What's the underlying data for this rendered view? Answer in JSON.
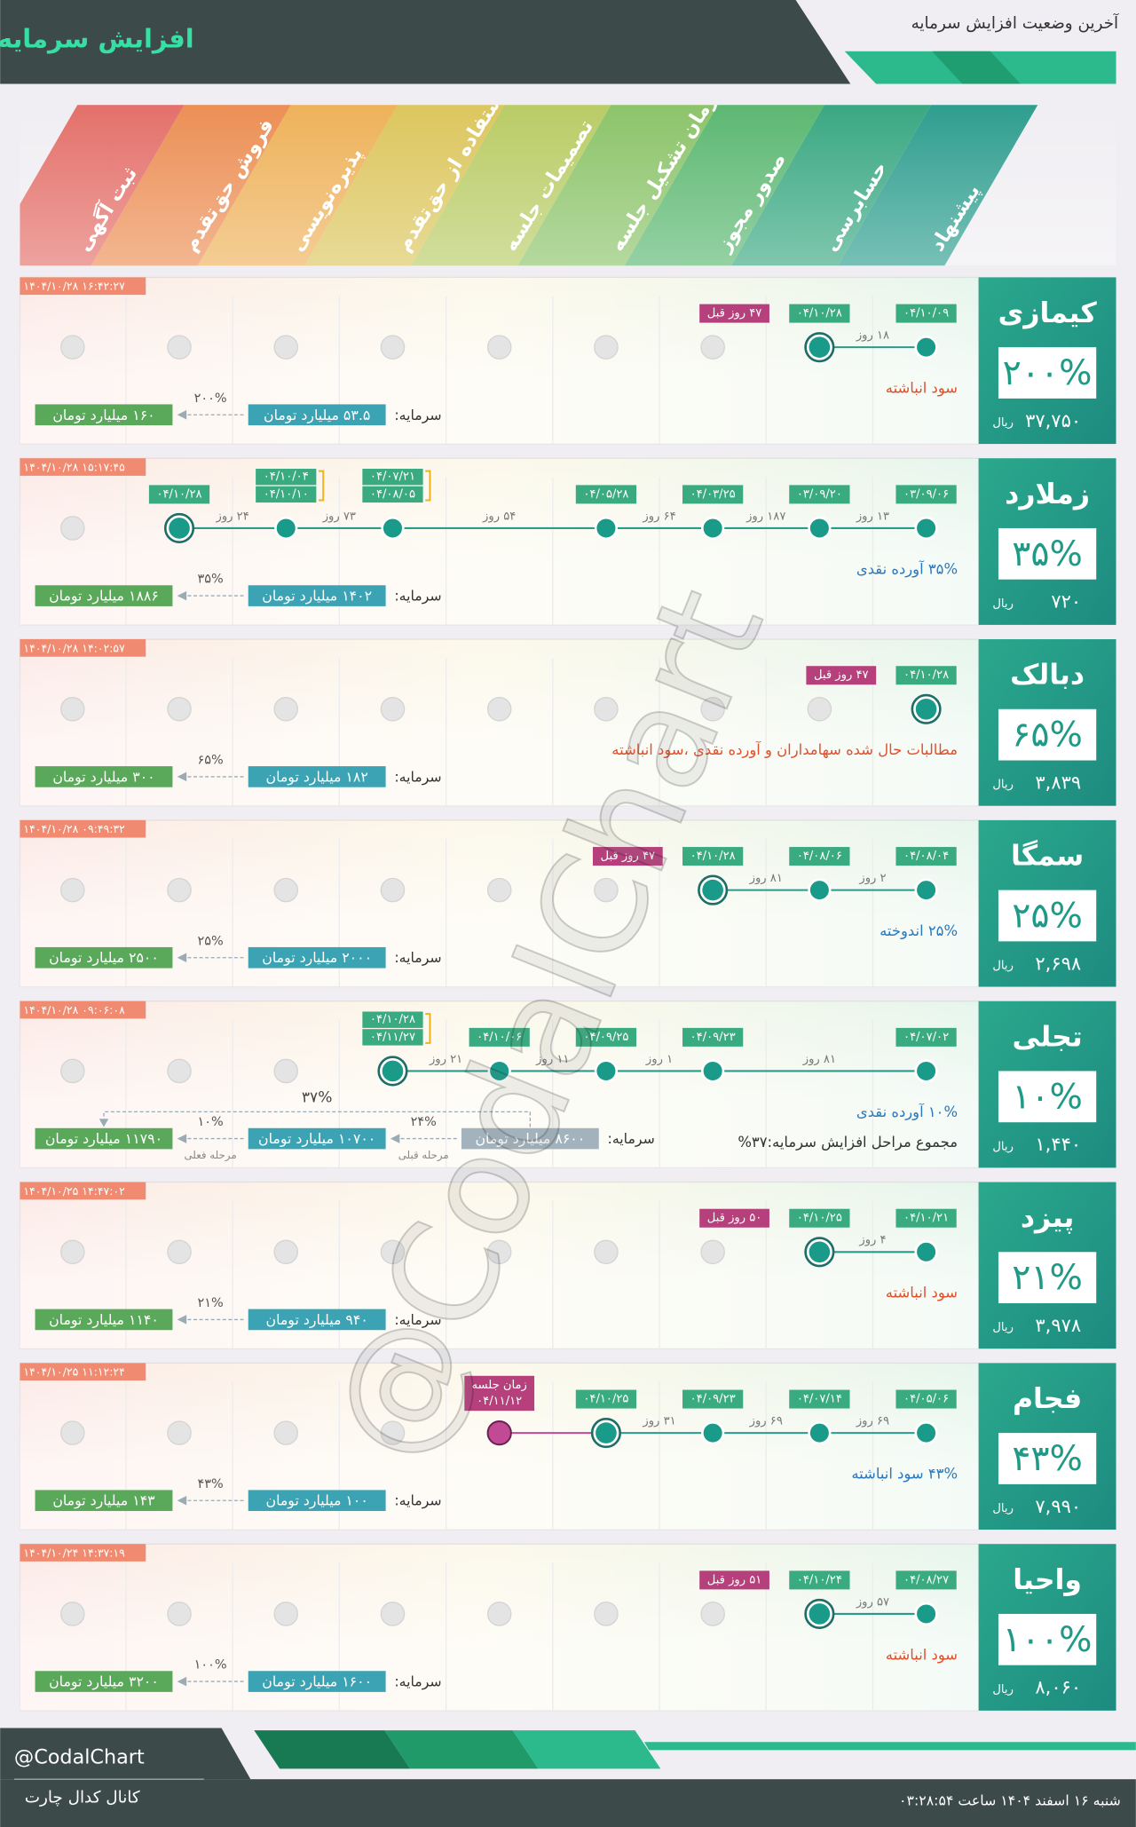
{
  "header": {
    "title": "افزایش سرمایه",
    "subtitle": "آخرین وضعیت افزایش سرمایه"
  },
  "stages": [
    "پیشنهاد",
    "حسابرسی",
    "صدور مجوز",
    "زمان تشکیل جلسه",
    "تصمیمات جلسه",
    "استفاده از حق‌تقدم",
    "پذیره‌نویسی",
    "فروش حق‌تقدم",
    "ثبت آگهی"
  ],
  "stage_colors": [
    "#2f9e8f",
    "#3aa882",
    "#5cb872",
    "#8cc46a",
    "#b9cc66",
    "#dcc65e",
    "#eeb25a",
    "#ec8f55",
    "#e4706a"
  ],
  "companies": [
    {
      "name": "کیمازی",
      "percent": "۲۰۰%",
      "price": "۳۷,۷۵۰",
      "unit": "ریال",
      "updated": "۱۴۰۴/۱۰/۲۸ ۱۶:۴۲:۲۷",
      "timeline": [
        {
          "dates": [
            "۰۴/۱۰/۰۹"
          ],
          "state": "done"
        },
        {
          "dates": [
            "۰۴/۱۰/۲۸"
          ],
          "state": "current",
          "ago": "۴۷ روز قبل"
        },
        null,
        null,
        null,
        null,
        null,
        null,
        null
      ],
      "gaps": [
        "۱۸ روز"
      ],
      "notes": [
        {
          "text": "سود انباشته",
          "color": "#e0502a"
        }
      ],
      "capital_label": "سرمایه:",
      "capital": [
        {
          "text": "۵۳.۵ میلیارد تومان",
          "color": "#3ba3b3"
        },
        {
          "text": "۱۶۰ میلیارد تومان",
          "color": "#5aa85a"
        }
      ],
      "steps": [
        {
          "pct": "۲۰۰%"
        }
      ]
    },
    {
      "name": "زملارد",
      "percent": "۳۵%",
      "price": "۷۲۰",
      "unit": "ریال",
      "updated": "۱۴۰۴/۱۰/۲۸ ۱۵:۱۷:۴۵",
      "timeline": [
        {
          "dates": [
            "۰۳/۰۹/۰۶"
          ],
          "state": "done"
        },
        {
          "dates": [
            "۰۳/۰۹/۲۰"
          ],
          "state": "done"
        },
        {
          "dates": [
            "۰۴/۰۳/۲۵"
          ],
          "state": "done"
        },
        {
          "dates": [
            "۰۴/۰۵/۲۸"
          ],
          "state": "done"
        },
        null,
        {
          "dates": [
            "۰۴/۰۷/۲۱",
            "۰۴/۰۸/۰۵"
          ],
          "state": "done"
        },
        {
          "dates": [
            "۰۴/۱۰/۰۴",
            "۰۴/۱۰/۱۰"
          ],
          "state": "done"
        },
        {
          "dates": [
            "۰۴/۱۰/۲۸"
          ],
          "state": "current"
        },
        null
      ],
      "gaps": [
        "۱۳ روز",
        "۱۸۷ روز",
        "۶۴ روز",
        "۵۴ روز",
        "۷۳ روز",
        "۲۴ روز"
      ],
      "notes": [
        {
          "text": "۳۵% آورده نقدی",
          "color": "#2a78bd"
        }
      ],
      "capital_label": "سرمایه:",
      "capital": [
        {
          "text": "۱۴۰۲ میلیارد تومان",
          "color": "#3ba3b3"
        },
        {
          "text": "۱۸۸۶ میلیارد تومان",
          "color": "#5aa85a"
        }
      ],
      "steps": [
        {
          "pct": "۳۵%"
        }
      ]
    },
    {
      "name": "دبالک",
      "percent": "۶۵%",
      "price": "۳,۸۳۹",
      "unit": "ریال",
      "updated": "۱۴۰۴/۱۰/۲۸ ۱۴:۰۲:۵۷",
      "timeline": [
        {
          "dates": [
            "۰۴/۱۰/۲۸"
          ],
          "state": "current",
          "ago": "۴۷ روز قبل"
        },
        null,
        null,
        null,
        null,
        null,
        null,
        null,
        null
      ],
      "gaps": [],
      "notes": [
        {
          "text": "مطالبات حال شده سهامداران و آورده نقدی ،سود انباشته",
          "color": "#e0502a"
        }
      ],
      "capital_label": "سرمایه:",
      "capital": [
        {
          "text": "۱۸۲ میلیارد تومان",
          "color": "#3ba3b3"
        },
        {
          "text": "۳۰۰ میلیارد تومان",
          "color": "#5aa85a"
        }
      ],
      "steps": [
        {
          "pct": "۶۵%"
        }
      ]
    },
    {
      "name": "سمگا",
      "percent": "۲۵%",
      "price": "۲,۶۹۸",
      "unit": "ریال",
      "updated": "۱۴۰۴/۱۰/۲۸ ۰۹:۴۹:۳۲",
      "timeline": [
        {
          "dates": [
            "۰۴/۰۸/۰۴"
          ],
          "state": "done"
        },
        {
          "dates": [
            "۰۴/۰۸/۰۶"
          ],
          "state": "done"
        },
        {
          "dates": [
            "۰۴/۱۰/۲۸"
          ],
          "state": "current",
          "ago": "۴۷ روز قبل"
        },
        null,
        null,
        null,
        null,
        null,
        null
      ],
      "gaps": [
        "۲ روز",
        "۸۱ روز"
      ],
      "notes": [
        {
          "text": "۲۵% اندوخته",
          "color": "#2a78bd"
        }
      ],
      "capital_label": "سرمایه:",
      "capital": [
        {
          "text": "۲۰۰۰ میلیارد تومان",
          "color": "#3ba3b3"
        },
        {
          "text": "۲۵۰۰ میلیارد تومان",
          "color": "#5aa85a"
        }
      ],
      "steps": [
        {
          "pct": "۲۵%"
        }
      ]
    },
    {
      "name": "تجلی",
      "percent": "۱۰%",
      "price": "۱,۴۴۰",
      "unit": "ریال",
      "updated": "۱۴۰۴/۱۰/۲۸ ۰۹:۰۶:۰۸",
      "timeline": [
        {
          "dates": [
            "۰۴/۰۷/۰۲"
          ],
          "state": "done"
        },
        null,
        {
          "dates": [
            "۰۴/۰۹/۲۳"
          ],
          "state": "done"
        },
        {
          "dates": [
            "۰۴/۰۹/۲۵"
          ],
          "state": "done"
        },
        {
          "dates": [
            "۰۴/۱۰/۰۶"
          ],
          "state": "done"
        },
        {
          "dates": [
            "۰۴/۱۰/۲۸",
            "۰۴/۱۱/۲۷"
          ],
          "state": "current"
        },
        null,
        null,
        null
      ],
      "gaps": [
        "۸۱ روز",
        "۱ روز",
        "۱۱ روز",
        "۲۱ روز"
      ],
      "notes": [
        {
          "text": "۱۰% آورده نقدی",
          "color": "#2a78bd"
        },
        {
          "text": "مجموع مراحل افزایش سرمایه:۳۷%",
          "color": "#333333"
        }
      ],
      "capital_label": "سرمایه:",
      "capital": [
        {
          "text": "۸۶۰۰ میلیارد تومان",
          "color": "#a3b3be"
        },
        {
          "text": "۱۰۷۰۰ میلیارد تومان",
          "color": "#3ba3b3"
        },
        {
          "text": "۱۱۷۹۰ میلیارد تومان",
          "color": "#5aa85a"
        }
      ],
      "steps": [
        {
          "pct": "۲۴%",
          "label": "مرحله قبلی"
        },
        {
          "pct": "۱۰%",
          "label": "مرحله فعلی"
        }
      ],
      "total": "۳۷%"
    },
    {
      "name": "پیزد",
      "percent": "۲۱%",
      "price": "۳,۹۷۸",
      "unit": "ریال",
      "updated": "۱۴۰۴/۱۰/۲۵ ۱۴:۴۷:۰۲",
      "timeline": [
        {
          "dates": [
            "۰۴/۱۰/۲۱"
          ],
          "state": "done"
        },
        {
          "dates": [
            "۰۴/۱۰/۲۵"
          ],
          "state": "current",
          "ago": "۵۰ روز قبل"
        },
        null,
        null,
        null,
        null,
        null,
        null,
        null
      ],
      "gaps": [
        "۴ روز"
      ],
      "notes": [
        {
          "text": "سود انباشته",
          "color": "#e0502a"
        }
      ],
      "capital_label": "سرمایه:",
      "capital": [
        {
          "text": "۹۴۰ میلیارد تومان",
          "color": "#3ba3b3"
        },
        {
          "text": "۱۱۴۰ میلیارد تومان",
          "color": "#5aa85a"
        }
      ],
      "steps": [
        {
          "pct": "۲۱%"
        }
      ]
    },
    {
      "name": "فجام",
      "percent": "۴۳%",
      "price": "۷,۹۹۰",
      "unit": "ریال",
      "updated": "۱۴۰۴/۱۰/۲۵ ۱۱:۱۲:۲۴",
      "timeline": [
        {
          "dates": [
            "۰۴/۰۵/۰۶"
          ],
          "state": "done"
        },
        {
          "dates": [
            "۰۴/۰۷/۱۴"
          ],
          "state": "done"
        },
        {
          "dates": [
            "۰۴/۰۹/۲۳"
          ],
          "state": "done"
        },
        {
          "dates": [
            "۰۴/۱۰/۲۵"
          ],
          "state": "current"
        },
        {
          "label": "زمان جلسه",
          "dates": [
            "۰۴/۱۱/۱۲"
          ],
          "state": "planned"
        },
        null,
        null,
        null,
        null
      ],
      "gaps": [
        "۶۹ روز",
        "۶۹ روز",
        "۳۱ روز",
        null
      ],
      "notes": [
        {
          "text": "۴۳% سود انباشته",
          "color": "#2a78bd"
        }
      ],
      "capital_label": "سرمایه:",
      "capital": [
        {
          "text": "۱۰۰ میلیارد تومان",
          "color": "#3ba3b3"
        },
        {
          "text": "۱۴۳ میلیارد تومان",
          "color": "#5aa85a"
        }
      ],
      "steps": [
        {
          "pct": "۴۳%"
        }
      ]
    },
    {
      "name": "واحیا",
      "percent": "۱۰۰%",
      "price": "۸,۰۶۰",
      "unit": "ریال",
      "updated": "۱۴۰۴/۱۰/۲۴ ۱۴:۳۷:۱۹",
      "timeline": [
        {
          "dates": [
            "۰۴/۰۸/۲۷"
          ],
          "state": "done"
        },
        {
          "dates": [
            "۰۴/۱۰/۲۴"
          ],
          "state": "current",
          "ago": "۵۱ روز قبل"
        },
        null,
        null,
        null,
        null,
        null,
        null,
        null
      ],
      "gaps": [
        "۵۷ روز"
      ],
      "notes": [
        {
          "text": "سود انباشته",
          "color": "#e0502a"
        }
      ],
      "capital_label": "سرمایه:",
      "capital": [
        {
          "text": "۱۶۰۰ میلیارد تومان",
          "color": "#3ba3b3"
        },
        {
          "text": "۳۲۰۰ میلیارد تومان",
          "color": "#5aa85a"
        }
      ],
      "steps": [
        {
          "pct": "۱۰۰%"
        }
      ]
    }
  ],
  "watermark": "@CodalChart",
  "footer": {
    "handle": "@CodalChart",
    "channel": "کانال کدال چارت",
    "date": "شنبه ۱۶ اسفند ۱۴۰۴ ساعت ۰۳:۲۸:۵۴"
  }
}
